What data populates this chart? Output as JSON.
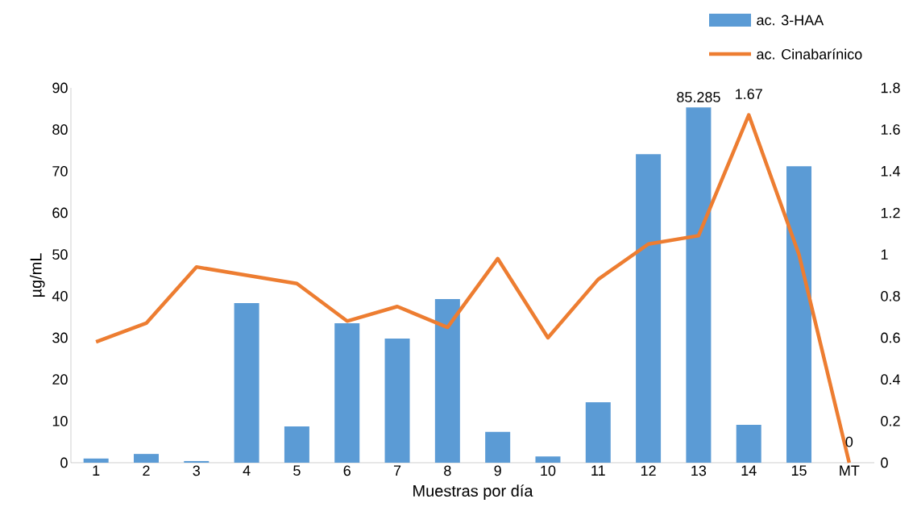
{
  "chart_data": {
    "type": "bar",
    "xlabel": "Muestras por día",
    "ylabel": "µg/mL",
    "categories": [
      "1",
      "2",
      "3",
      "4",
      "5",
      "6",
      "7",
      "8",
      "9",
      "10",
      "11",
      "12",
      "13",
      "14",
      "15",
      "MT"
    ],
    "ylim": [
      0,
      90
    ],
    "yticks": [
      0,
      10,
      20,
      30,
      40,
      50,
      60,
      70,
      80,
      90
    ],
    "y2lim": [
      0,
      1.8
    ],
    "y2ticks": [
      0,
      0.2,
      0.4,
      0.6,
      0.8,
      1,
      1.2,
      1.4,
      1.6,
      1.8
    ],
    "legend": "top right",
    "series": [
      {
        "name": "ac. 3-HAA",
        "color": "#5b9bd5",
        "values": [
          1.0,
          2.1,
          0.4,
          38.3,
          8.7,
          33.5,
          29.8,
          39.3,
          7.4,
          1.5,
          14.5,
          74.1,
          85.285,
          9.1,
          71.2,
          0
        ],
        "value_labels": [
          null,
          null,
          null,
          null,
          null,
          null,
          null,
          null,
          null,
          null,
          null,
          null,
          "85.285",
          null,
          null,
          null
        ]
      },
      {
        "name": "ac. Cinabarínico",
        "type": "line",
        "axis": "y2",
        "color": "#ed7d31",
        "values": [
          0.58,
          0.67,
          0.94,
          0.9,
          0.86,
          0.68,
          0.75,
          0.65,
          0.98,
          0.6,
          0.88,
          1.05,
          1.09,
          1.67,
          1.0,
          0
        ],
        "value_labels": [
          null,
          null,
          null,
          null,
          null,
          null,
          null,
          null,
          null,
          null,
          null,
          null,
          null,
          "1.67",
          null,
          "0"
        ]
      }
    ]
  }
}
